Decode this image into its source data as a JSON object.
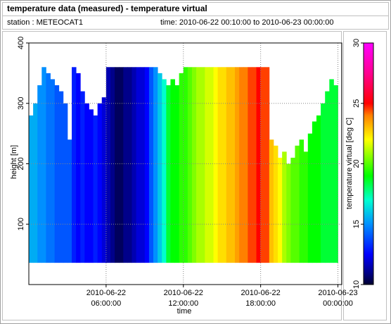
{
  "title": "temperature data (measured) - temperature virtual",
  "station": "station : METEOCAT1",
  "time_range": "time: 2010-06-22 00:10:00 to 2010-06-23 00:00:00",
  "chart_data": {
    "type": "heatmap",
    "xlabel": "time",
    "ylabel": "height [m]",
    "colorbar_label": "temperature virtual [deg C]",
    "xlim": [
      0,
      1458
    ],
    "xticks": [
      {
        "value": 360,
        "label": "2010-06-22 06:00:00"
      },
      {
        "value": 720,
        "label": "2010-06-22 12:00:00"
      },
      {
        "value": 1080,
        "label": "2010-06-22 18:00:00"
      },
      {
        "value": 1440,
        "label": "2010-06-23 00:00:00"
      }
    ],
    "ylim": [
      0,
      400
    ],
    "yticks": [
      100,
      200,
      300,
      400
    ],
    "clim": [
      10,
      30
    ],
    "cticks": [
      10,
      15,
      20,
      25,
      30
    ],
    "colorscale": [
      [
        10,
        "#000030"
      ],
      [
        11,
        "#00008a"
      ],
      [
        12.5,
        "#0000ff"
      ],
      [
        15,
        "#0090ff"
      ],
      [
        17,
        "#00ffd0"
      ],
      [
        19,
        "#00ff00"
      ],
      [
        22,
        "#ffff00"
      ],
      [
        24,
        "#ff8000"
      ],
      [
        25,
        "#ff0000"
      ],
      [
        27.5,
        "#ff0090"
      ],
      [
        30,
        "#ff00ff"
      ]
    ],
    "grid": true,
    "bin_width": 20,
    "base": 36,
    "x": [
      0,
      20,
      40,
      60,
      80,
      100,
      120,
      140,
      160,
      180,
      200,
      220,
      240,
      260,
      280,
      300,
      320,
      340,
      360,
      380,
      400,
      420,
      440,
      460,
      480,
      500,
      520,
      540,
      560,
      580,
      600,
      620,
      640,
      660,
      680,
      700,
      720,
      740,
      760,
      780,
      800,
      820,
      840,
      860,
      880,
      900,
      920,
      940,
      960,
      980,
      1000,
      1020,
      1040,
      1060,
      1080,
      1100,
      1120,
      1140,
      1160,
      1180,
      1200,
      1220,
      1240,
      1260,
      1280,
      1300,
      1320,
      1340,
      1360,
      1380,
      1400,
      1420
    ],
    "values": [
      15.5,
      15.5,
      15,
      15,
      14.5,
      14.5,
      14,
      14,
      14,
      14,
      13,
      12.5,
      13,
      12.5,
      12.5,
      13,
      12.5,
      12,
      11.5,
      11,
      10.5,
      10.5,
      11,
      11,
      11.5,
      12,
      12,
      12.5,
      14,
      15,
      16,
      17,
      18.5,
      19,
      19,
      19.5,
      19.5,
      20,
      20.5,
      21,
      21,
      21.5,
      21.5,
      22,
      22.5,
      22.5,
      23,
      23,
      23.5,
      24,
      24,
      24.5,
      24.5,
      25,
      24.5,
      24.5,
      23,
      22.5,
      22,
      21,
      20.5,
      20,
      20,
      19.5,
      19.5,
      19,
      19,
      19,
      18.5,
      18.5,
      18.5,
      18.5
    ],
    "tops": [
      280,
      300,
      330,
      360,
      350,
      340,
      330,
      320,
      300,
      240,
      360,
      350,
      320,
      300,
      290,
      280,
      300,
      310,
      360,
      360,
      360,
      360,
      360,
      360,
      360,
      360,
      360,
      360,
      360,
      360,
      350,
      340,
      330,
      340,
      330,
      350,
      360,
      360,
      360,
      360,
      360,
      360,
      360,
      360,
      360,
      360,
      360,
      360,
      360,
      360,
      360,
      360,
      360,
      360,
      360,
      360,
      240,
      230,
      210,
      220,
      200,
      210,
      230,
      240,
      220,
      250,
      270,
      280,
      300,
      320,
      340,
      330
    ]
  }
}
